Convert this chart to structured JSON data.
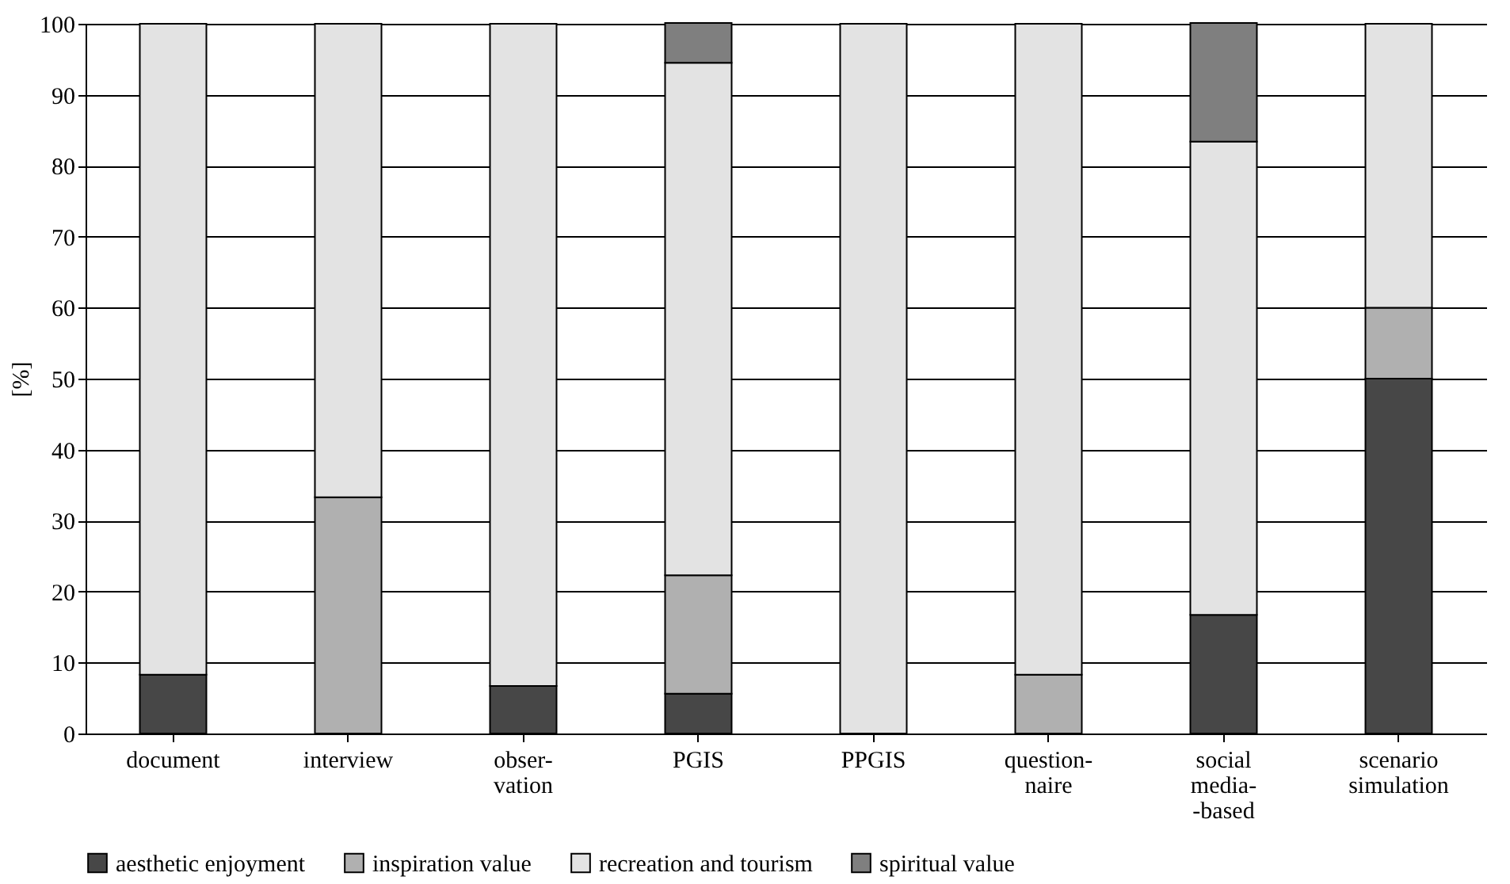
{
  "chart_data": {
    "type": "bar",
    "stacked": true,
    "ylabel": "[%]",
    "categories": [
      "document",
      "interview",
      "obser-\nvation",
      "PGIS",
      "PPGIS",
      "question-\nnaire",
      "social\nmedia-\n-based",
      "scenario\nsimulation"
    ],
    "series": [
      {
        "name": "aesthetic enjoyment",
        "color": "#474747",
        "values": [
          8.3,
          null,
          6.7,
          5.6,
          null,
          null,
          16.7,
          50
        ]
      },
      {
        "name": "inspiration value",
        "color": "#b0b0b0",
        "values": [
          null,
          33.3,
          null,
          16.7,
          null,
          8.3,
          null,
          10
        ]
      },
      {
        "name": "recreation and tourism",
        "color": "#e3e3e3",
        "values": [
          91.7,
          66.7,
          93.3,
          72.2,
          100,
          91.7,
          66.7,
          40
        ]
      },
      {
        "name": "spiritual value",
        "color": "#7f7f7f",
        "values": [
          null,
          null,
          null,
          5.6,
          null,
          null,
          16.7,
          null
        ]
      }
    ],
    "ylim": [
      0,
      100
    ],
    "yticks": [
      0,
      10,
      20,
      30,
      40,
      50,
      60,
      70,
      80,
      90,
      100
    ],
    "grid": "y",
    "legend": "bottom"
  }
}
